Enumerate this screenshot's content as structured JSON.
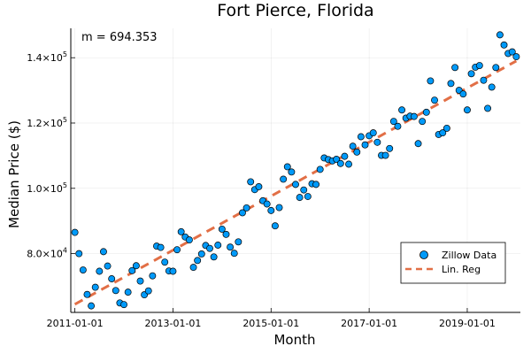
{
  "chart_data": {
    "type": "scatter",
    "title": "Fort Pierce, Florida",
    "xlabel": "Month",
    "ylabel": "Median Price ($)",
    "annotation": "m = 694.353",
    "grid": true,
    "legend_placement": "bottom-right",
    "xlim": [
      "2010-12-01",
      "2020-02-01"
    ],
    "ylim": [
      62000,
      149000
    ],
    "x_ticks": [
      {
        "value": "2011-01-01",
        "label": "2011-01-01"
      },
      {
        "value": "2013-01-01",
        "label": "2013-01-01"
      },
      {
        "value": "2015-01-01",
        "label": "2015-01-01"
      },
      {
        "value": "2017-01-01",
        "label": "2017-01-01"
      },
      {
        "value": "2019-01-01",
        "label": "2019-01-01"
      }
    ],
    "y_ticks": [
      {
        "value": 80000,
        "mantissa": "8.0×10",
        "exponent": "4"
      },
      {
        "value": 100000,
        "mantissa": "1.0×10",
        "exponent": "5"
      },
      {
        "value": 120000,
        "mantissa": "1.2×10",
        "exponent": "5"
      },
      {
        "value": 140000,
        "mantissa": "1.4×10",
        "exponent": "5"
      }
    ],
    "series": [
      {
        "name": "Zillow Data",
        "kind": "scatter",
        "color": "#009AF9",
        "points": [
          {
            "x": "2011-01-01",
            "y": 86500
          },
          {
            "x": "2011-02-01",
            "y": 80000
          },
          {
            "x": "2011-03-01",
            "y": 75000
          },
          {
            "x": "2011-04-01",
            "y": 67500
          },
          {
            "x": "2011-05-01",
            "y": 64000
          },
          {
            "x": "2011-06-01",
            "y": 69700
          },
          {
            "x": "2011-07-01",
            "y": 74600
          },
          {
            "x": "2011-08-01",
            "y": 80600
          },
          {
            "x": "2011-09-01",
            "y": 76200
          },
          {
            "x": "2011-10-01",
            "y": 72300
          },
          {
            "x": "2011-11-01",
            "y": 68700
          },
          {
            "x": "2011-12-01",
            "y": 64900
          },
          {
            "x": "2012-01-01",
            "y": 64400
          },
          {
            "x": "2012-02-01",
            "y": 68200
          },
          {
            "x": "2012-03-01",
            "y": 74800
          },
          {
            "x": "2012-04-01",
            "y": 76300
          },
          {
            "x": "2012-05-01",
            "y": 71600
          },
          {
            "x": "2012-06-01",
            "y": 67400
          },
          {
            "x": "2012-07-01",
            "y": 68600
          },
          {
            "x": "2012-08-01",
            "y": 73200
          },
          {
            "x": "2012-09-01",
            "y": 82300
          },
          {
            "x": "2012-10-01",
            "y": 81900
          },
          {
            "x": "2012-11-01",
            "y": 77400
          },
          {
            "x": "2012-12-01",
            "y": 74700
          },
          {
            "x": "2013-01-01",
            "y": 74600
          },
          {
            "x": "2013-02-01",
            "y": 81200
          },
          {
            "x": "2013-03-01",
            "y": 86700
          },
          {
            "x": "2013-04-01",
            "y": 85100
          },
          {
            "x": "2013-05-01",
            "y": 84200
          },
          {
            "x": "2013-06-01",
            "y": 75800
          },
          {
            "x": "2013-07-01",
            "y": 77900
          },
          {
            "x": "2013-08-01",
            "y": 79900
          },
          {
            "x": "2013-09-01",
            "y": 82500
          },
          {
            "x": "2013-10-01",
            "y": 81600
          },
          {
            "x": "2013-11-01",
            "y": 79000
          },
          {
            "x": "2013-12-01",
            "y": 82600
          },
          {
            "x": "2014-01-01",
            "y": 87500
          },
          {
            "x": "2014-02-01",
            "y": 85900
          },
          {
            "x": "2014-03-01",
            "y": 82000
          },
          {
            "x": "2014-04-01",
            "y": 80100
          },
          {
            "x": "2014-05-01",
            "y": 83600
          },
          {
            "x": "2014-06-01",
            "y": 92500
          },
          {
            "x": "2014-07-01",
            "y": 94000
          },
          {
            "x": "2014-08-01",
            "y": 102000
          },
          {
            "x": "2014-09-01",
            "y": 99600
          },
          {
            "x": "2014-10-01",
            "y": 100500
          },
          {
            "x": "2014-11-01",
            "y": 96200
          },
          {
            "x": "2014-12-01",
            "y": 95200
          },
          {
            "x": "2015-01-01",
            "y": 93200
          },
          {
            "x": "2015-02-01",
            "y": 88500
          },
          {
            "x": "2015-03-01",
            "y": 94100
          },
          {
            "x": "2015-04-01",
            "y": 102800
          },
          {
            "x": "2015-05-01",
            "y": 106600
          },
          {
            "x": "2015-06-01",
            "y": 105000
          },
          {
            "x": "2015-07-01",
            "y": 101200
          },
          {
            "x": "2015-08-01",
            "y": 97200
          },
          {
            "x": "2015-09-01",
            "y": 99500
          },
          {
            "x": "2015-10-01",
            "y": 97500
          },
          {
            "x": "2015-11-01",
            "y": 101400
          },
          {
            "x": "2015-12-01",
            "y": 101200
          },
          {
            "x": "2016-01-01",
            "y": 105800
          },
          {
            "x": "2016-02-01",
            "y": 109300
          },
          {
            "x": "2016-03-01",
            "y": 108800
          },
          {
            "x": "2016-04-01",
            "y": 108400
          },
          {
            "x": "2016-05-01",
            "y": 108900
          },
          {
            "x": "2016-06-01",
            "y": 107600
          },
          {
            "x": "2016-07-01",
            "y": 109800
          },
          {
            "x": "2016-08-01",
            "y": 107400
          },
          {
            "x": "2016-09-01",
            "y": 112900
          },
          {
            "x": "2016-10-01",
            "y": 111100
          },
          {
            "x": "2016-11-01",
            "y": 115800
          },
          {
            "x": "2016-12-01",
            "y": 113300
          },
          {
            "x": "2017-01-01",
            "y": 116100
          },
          {
            "x": "2017-02-01",
            "y": 117000
          },
          {
            "x": "2017-03-01",
            "y": 114100
          },
          {
            "x": "2017-04-01",
            "y": 110100
          },
          {
            "x": "2017-05-01",
            "y": 110100
          },
          {
            "x": "2017-06-01",
            "y": 112200
          },
          {
            "x": "2017-07-01",
            "y": 120500
          },
          {
            "x": "2017-08-01",
            "y": 119000
          },
          {
            "x": "2017-09-01",
            "y": 124000
          },
          {
            "x": "2017-10-01",
            "y": 121500
          },
          {
            "x": "2017-11-01",
            "y": 122100
          },
          {
            "x": "2017-12-01",
            "y": 122000
          },
          {
            "x": "2018-01-01",
            "y": 113700
          },
          {
            "x": "2018-02-01",
            "y": 120500
          },
          {
            "x": "2018-03-01",
            "y": 123300
          },
          {
            "x": "2018-04-01",
            "y": 132900
          },
          {
            "x": "2018-05-01",
            "y": 127000
          },
          {
            "x": "2018-06-01",
            "y": 116500
          },
          {
            "x": "2018-07-01",
            "y": 117000
          },
          {
            "x": "2018-08-01",
            "y": 118400
          },
          {
            "x": "2018-09-01",
            "y": 132100
          },
          {
            "x": "2018-10-01",
            "y": 137000
          },
          {
            "x": "2018-11-01",
            "y": 130000
          },
          {
            "x": "2018-12-01",
            "y": 128900
          },
          {
            "x": "2019-01-01",
            "y": 124000
          },
          {
            "x": "2019-02-01",
            "y": 135100
          },
          {
            "x": "2019-03-01",
            "y": 137100
          },
          {
            "x": "2019-04-01",
            "y": 137600
          },
          {
            "x": "2019-05-01",
            "y": 133100
          },
          {
            "x": "2019-06-01",
            "y": 124500
          },
          {
            "x": "2019-07-01",
            "y": 131000
          },
          {
            "x": "2019-08-01",
            "y": 137000
          },
          {
            "x": "2019-09-01",
            "y": 147000
          },
          {
            "x": "2019-10-01",
            "y": 143900
          },
          {
            "x": "2019-11-01",
            "y": 141300
          },
          {
            "x": "2019-12-01",
            "y": 141800
          },
          {
            "x": "2020-01-01",
            "y": 140300
          }
        ]
      },
      {
        "name": "Lin. Reg",
        "kind": "line",
        "style": "dashed",
        "color": "#E26F46",
        "points": [
          {
            "x": "2011-01-01",
            "y": 64500
          },
          {
            "x": "2020-01-01",
            "y": 139000
          }
        ]
      }
    ]
  }
}
